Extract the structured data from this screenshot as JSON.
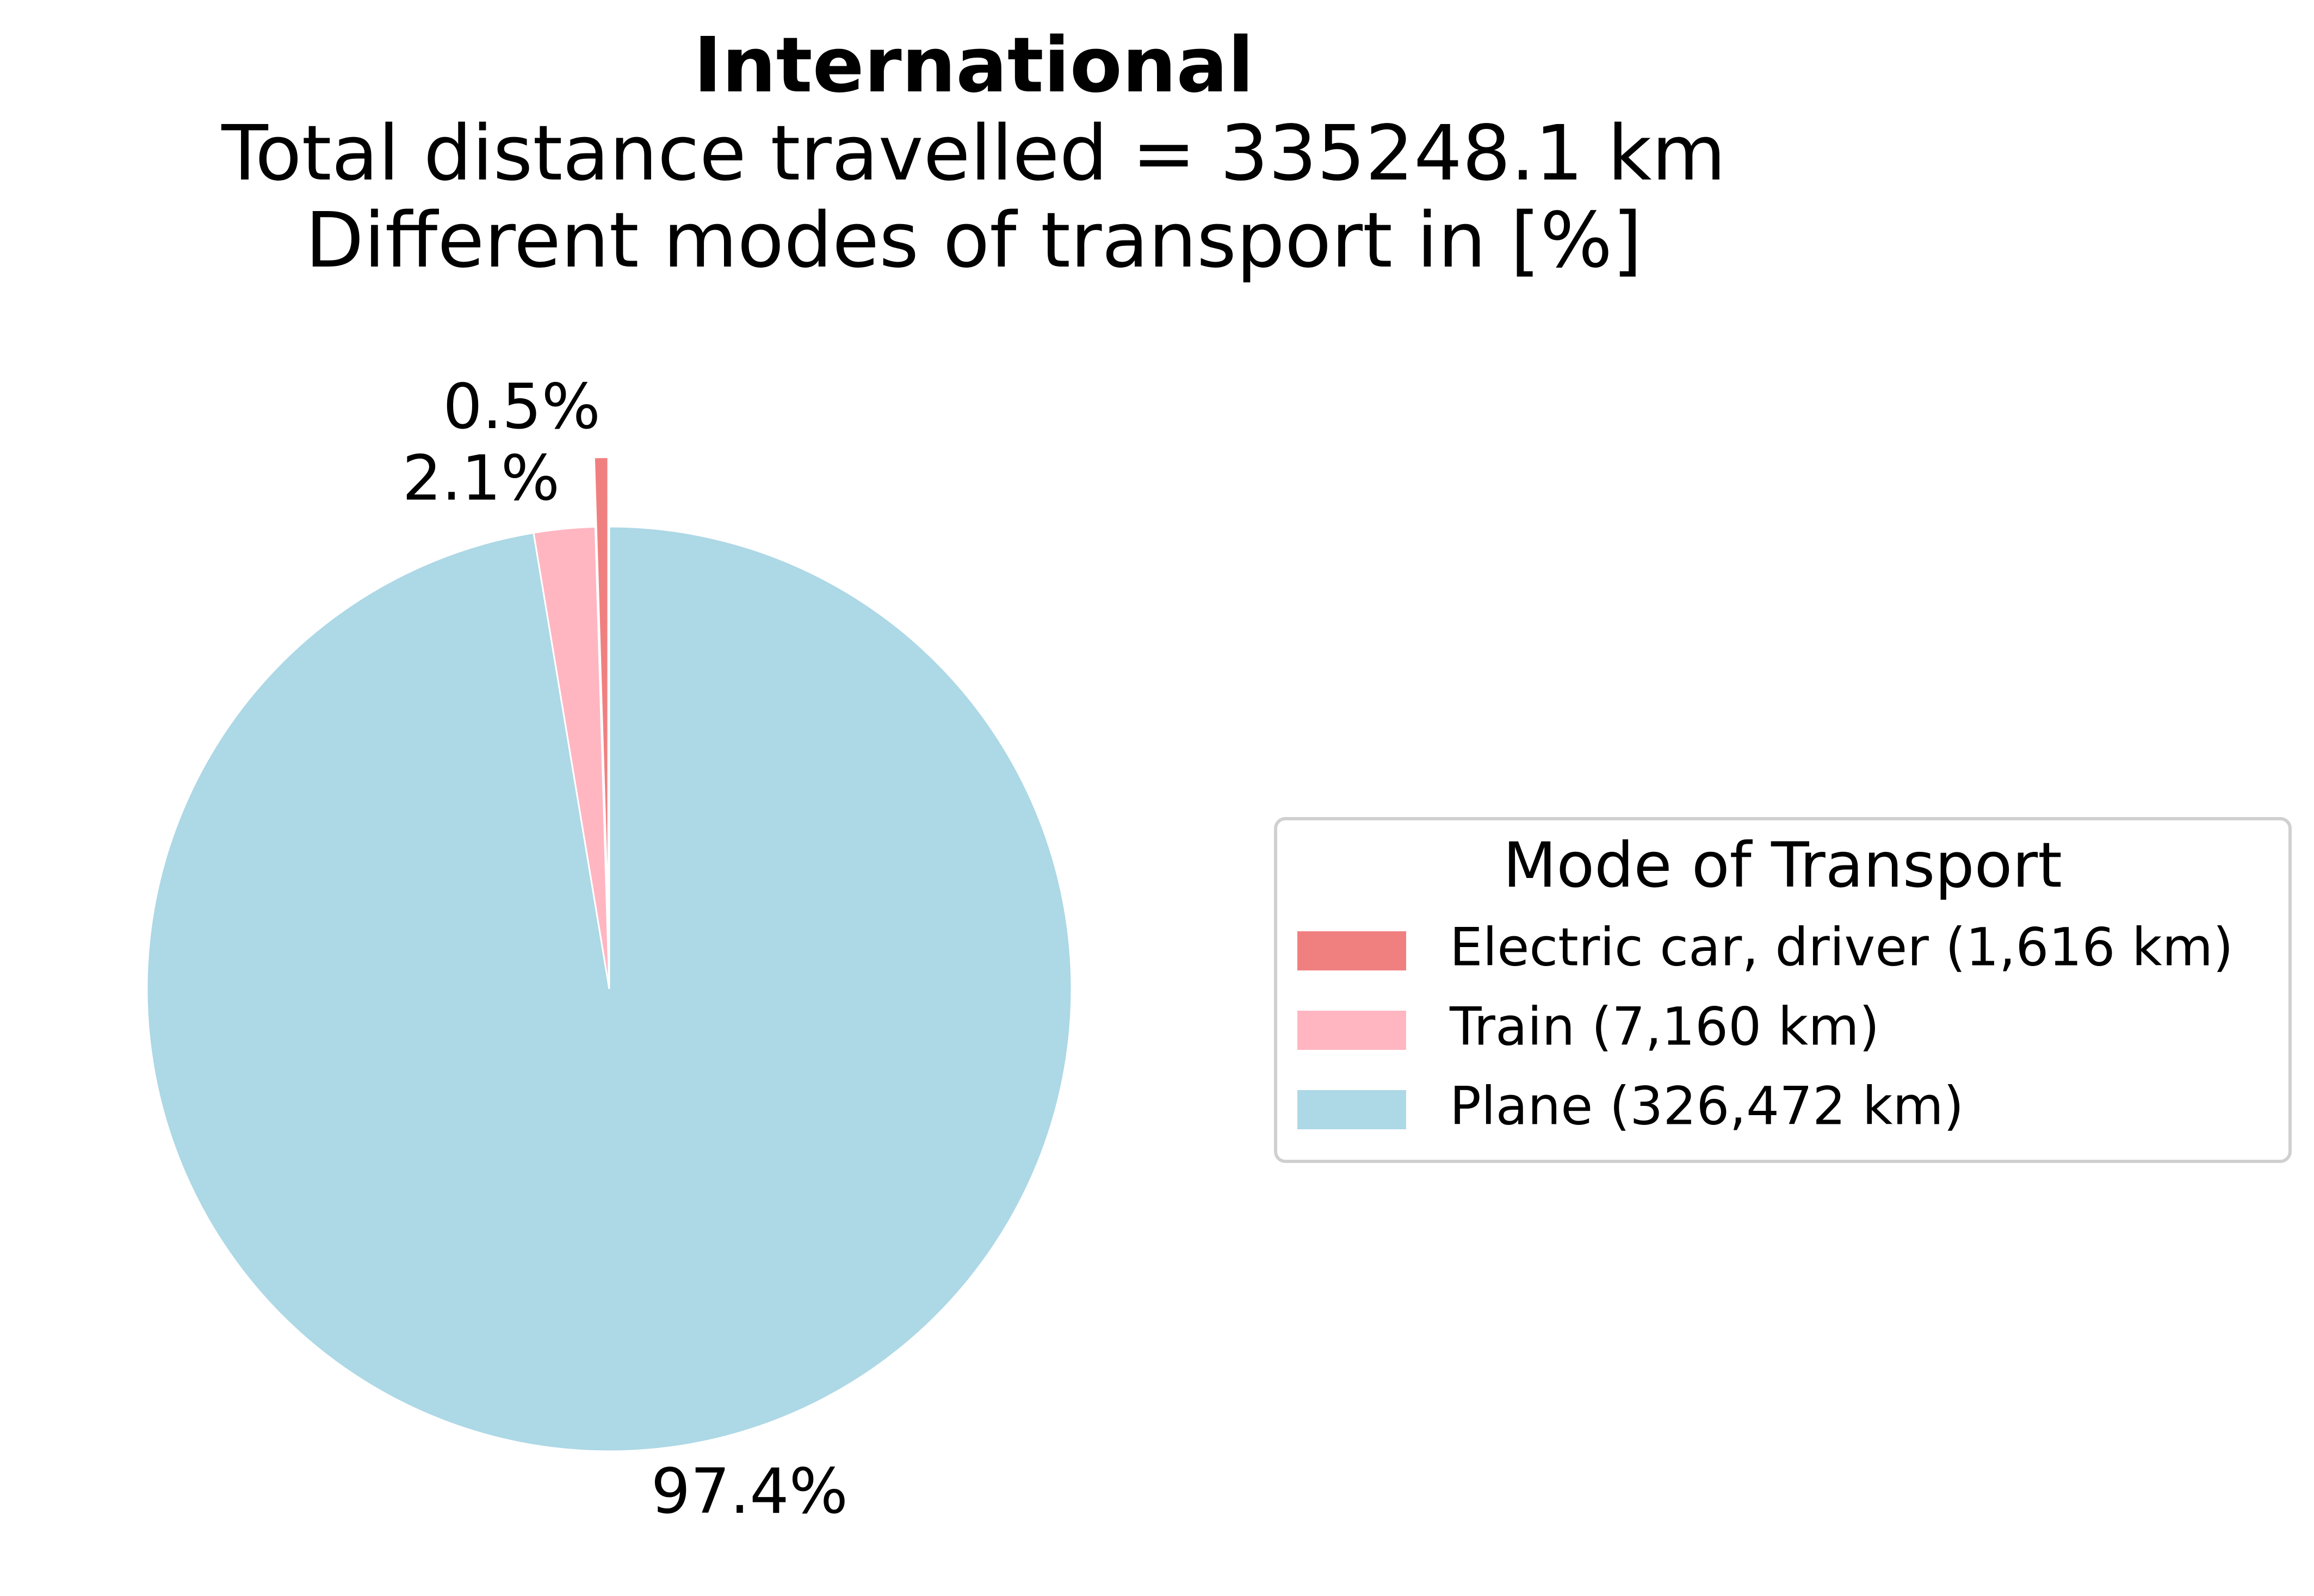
{
  "chart_data": {
    "type": "pie",
    "title": "International",
    "subtitle_lines": [
      "Total distance travelled = 335248.1 km",
      "Different modes of transport in [%]"
    ],
    "slices": [
      {
        "name": "Electric car, driver",
        "legend_label": "Electric car, driver (1,616 km)",
        "value": 1616,
        "pct_label": "0.5%",
        "color": "#f08080",
        "exploded": true
      },
      {
        "name": "Train",
        "legend_label": "Train (7,160 km)",
        "value": 7160,
        "pct_label": "2.1%",
        "color": "#ffb6c1",
        "exploded": false
      },
      {
        "name": "Plane",
        "legend_label": "Plane (326,472 km)",
        "value": 326472,
        "pct_label": "97.4%",
        "color": "#add8e6",
        "exploded": false
      }
    ],
    "start_angle_deg": 90,
    "direction": "counterclockwise",
    "legend": {
      "title": "Mode of Transport",
      "placement": "center-right"
    }
  }
}
